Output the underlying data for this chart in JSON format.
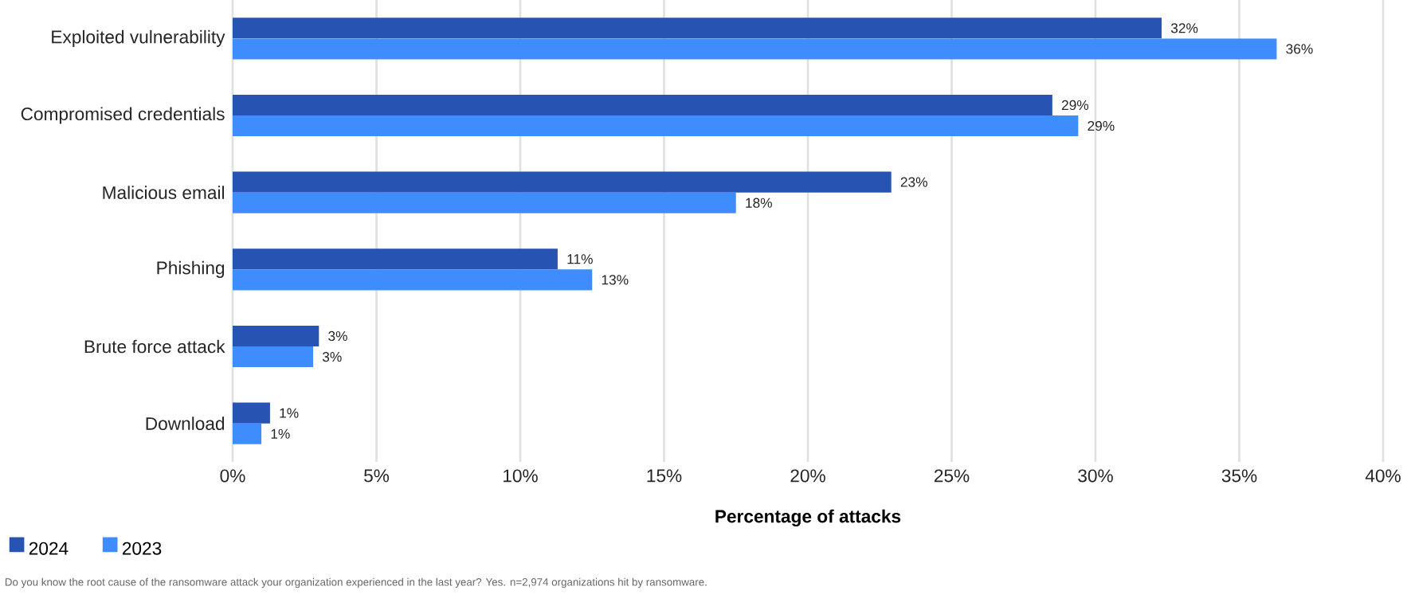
{
  "chart_data": {
    "type": "bar",
    "orientation": "horizontal",
    "categories": [
      "Exploited vulnerability",
      "Compromised credentials",
      "Malicious email",
      "Phishing",
      "Brute force attack",
      "Download"
    ],
    "series": [
      {
        "name": "2024",
        "color": "#2753b3",
        "values": [
          32.3,
          28.5,
          22.9,
          11.3,
          3.0,
          1.3
        ],
        "value_labels": [
          "32%",
          "29%",
          "23%",
          "11%",
          "3%",
          "1%"
        ]
      },
      {
        "name": "2023",
        "color": "#3f8cff",
        "values": [
          36.3,
          29.4,
          17.5,
          12.5,
          2.8,
          1.0
        ],
        "value_labels": [
          "36%",
          "29%",
          "18%",
          "13%",
          "3%",
          "1%"
        ]
      }
    ],
    "xlabel": "Percentage of attacks",
    "xlim": [
      0,
      40
    ],
    "xticks": [
      {
        "value": 0,
        "label": "0%"
      },
      {
        "value": 5,
        "label": "5%"
      },
      {
        "value": 10,
        "label": "10%"
      },
      {
        "value": 15,
        "label": "15%"
      },
      {
        "value": 20,
        "label": "20%"
      },
      {
        "value": 25,
        "label": "25%"
      },
      {
        "value": 30,
        "label": "30%"
      },
      {
        "value": 35,
        "label": "35%"
      },
      {
        "value": 40,
        "label": "40%"
      }
    ],
    "grid": "x",
    "legend": "bottom left",
    "annotations": [
      "Do you know the root cause of the ransomware attack your organization experienced in the last year? Yes.  n=2,974 organizations hit by ransomware."
    ]
  }
}
